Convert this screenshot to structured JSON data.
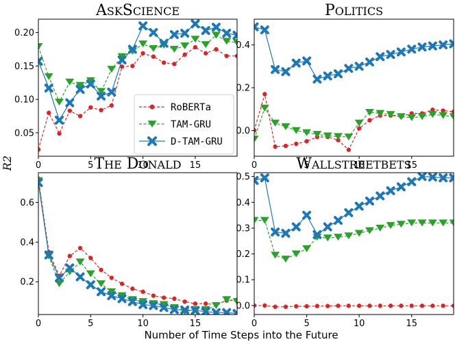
{
  "figure": {
    "xlabel": "Number of Time Steps into the Future",
    "ylabel": "R2"
  },
  "legend": {
    "location": "center of top-left panel",
    "entries": [
      "RoBERTa",
      "TAM-GRU",
      "D-TAM-GRU"
    ]
  },
  "colors": {
    "RoBERTa": "#d62728",
    "TAM-GRU": "#2ca02c",
    "D-TAM-GRU": "#1f77b4"
  },
  "chart_data": [
    {
      "type": "line",
      "title": "AskScience",
      "xlim": [
        0,
        19
      ],
      "ylim": [
        0.015,
        0.22
      ],
      "xticks": [
        0,
        5,
        10,
        15
      ],
      "yticks": [
        0.05,
        0.1,
        0.15,
        0.2
      ],
      "ytick_labels": [
        "0.05",
        "0.10",
        "0.15",
        "0.20"
      ],
      "x": [
        0,
        1,
        2,
        3,
        4,
        5,
        6,
        7,
        8,
        9,
        10,
        11,
        12,
        13,
        14,
        15,
        16,
        17,
        18,
        19
      ],
      "series": [
        {
          "name": "RoBERTa",
          "values": [
            0.025,
            0.08,
            0.049,
            0.083,
            0.075,
            0.088,
            0.084,
            0.091,
            0.149,
            0.15,
            0.169,
            0.164,
            0.155,
            0.153,
            0.167,
            0.178,
            0.169,
            0.175,
            0.165,
            0.165
          ]
        },
        {
          "name": "TAM-GRU",
          "values": [
            0.179,
            0.134,
            0.096,
            0.126,
            0.121,
            0.128,
            0.112,
            0.145,
            0.164,
            0.172,
            0.183,
            0.176,
            0.181,
            0.175,
            0.18,
            0.19,
            0.182,
            0.196,
            0.187,
            0.185
          ]
        },
        {
          "name": "D-TAM-GRU",
          "values": [
            0.157,
            0.117,
            0.069,
            0.095,
            0.115,
            0.123,
            0.105,
            0.111,
            0.159,
            0.175,
            0.21,
            0.2,
            0.184,
            0.197,
            0.199,
            0.213,
            0.203,
            0.208,
            0.199,
            0.196
          ]
        }
      ]
    },
    {
      "type": "line",
      "title": "Politics",
      "xlim": [
        0,
        19
      ],
      "ylim": [
        -0.12,
        0.52
      ],
      "xticks": [
        0,
        5,
        10,
        15
      ],
      "yticks": [
        0.0,
        0.2,
        0.4
      ],
      "ytick_labels": [
        "0.0",
        "0.2",
        "0.4"
      ],
      "x": [
        0,
        1,
        2,
        3,
        4,
        5,
        6,
        7,
        8,
        9,
        10,
        11,
        12,
        13,
        14,
        15,
        16,
        17,
        18,
        19
      ],
      "series": [
        {
          "name": "RoBERTa",
          "values": [
            0.0,
            0.17,
            -0.075,
            -0.072,
            -0.062,
            -0.05,
            -0.03,
            -0.03,
            -0.045,
            -0.09,
            0.01,
            0.048,
            0.07,
            0.07,
            0.065,
            0.08,
            0.08,
            0.097,
            0.093,
            0.088
          ]
        },
        {
          "name": "TAM-GRU",
          "values": [
            -0.04,
            0.105,
            0.035,
            0.018,
            0.0,
            -0.01,
            -0.018,
            -0.025,
            -0.028,
            -0.03,
            0.035,
            0.085,
            0.08,
            0.075,
            0.065,
            0.06,
            0.065,
            0.075,
            0.07,
            0.065
          ]
        },
        {
          "name": "D-TAM-GRU",
          "values": [
            0.484,
            0.47,
            0.285,
            0.275,
            0.315,
            0.325,
            0.24,
            0.255,
            0.265,
            0.29,
            0.3,
            0.32,
            0.345,
            0.355,
            0.367,
            0.38,
            0.39,
            0.395,
            0.4,
            0.405
          ]
        }
      ]
    },
    {
      "type": "line",
      "title": "The Donald",
      "xlim": [
        0,
        19
      ],
      "ylim": [
        0.035,
        0.75
      ],
      "xticks": [
        0,
        5,
        10,
        15
      ],
      "yticks": [
        0.2,
        0.4,
        0.6
      ],
      "ytick_labels": [
        "0.2",
        "0.4",
        "0.6"
      ],
      "x": [
        0,
        1,
        2,
        3,
        4,
        5,
        6,
        7,
        8,
        9,
        10,
        11,
        12,
        13,
        14,
        15,
        16,
        17,
        18,
        19
      ],
      "series": [
        {
          "name": "RoBERTa",
          "values": [
            0.72,
            0.35,
            0.23,
            0.33,
            0.37,
            0.32,
            0.26,
            0.22,
            0.19,
            0.165,
            0.15,
            0.13,
            0.12,
            0.115,
            0.1,
            0.09,
            0.09,
            0.085,
            0.105,
            0.11
          ]
        },
        {
          "name": "TAM-GRU",
          "values": [
            0.71,
            0.33,
            0.19,
            0.25,
            0.3,
            0.24,
            0.19,
            0.15,
            0.13,
            0.11,
            0.1,
            0.09,
            0.085,
            0.07,
            0.05,
            0.06,
            0.06,
            0.08,
            0.11,
            0.1
          ]
        },
        {
          "name": "D-TAM-GRU",
          "values": [
            0.7,
            0.335,
            0.22,
            0.27,
            0.225,
            0.185,
            0.15,
            0.13,
            0.115,
            0.1,
            0.085,
            0.08,
            0.07,
            0.06,
            0.058,
            0.055,
            0.05,
            0.045,
            0.045,
            0.04
          ]
        }
      ]
    },
    {
      "type": "line",
      "title": "Wallstreetbets",
      "xlim": [
        0,
        19
      ],
      "ylim": [
        -0.035,
        0.515
      ],
      "xticks": [
        0,
        5,
        10,
        15
      ],
      "yticks": [
        0.0,
        0.1,
        0.2,
        0.3,
        0.4,
        0.5
      ],
      "ytick_labels": [
        "0.0",
        "0.1",
        "0.2",
        "0.3",
        "0.4",
        "0.5"
      ],
      "x": [
        0,
        1,
        2,
        3,
        4,
        5,
        6,
        7,
        8,
        9,
        10,
        11,
        12,
        13,
        14,
        15,
        16,
        17,
        18,
        19
      ],
      "series": [
        {
          "name": "RoBERTa",
          "values": [
            0.0,
            0.0,
            -0.005,
            -0.005,
            -0.003,
            -0.003,
            -0.002,
            -0.002,
            -0.001,
            -0.001,
            -0.001,
            -0.001,
            -0.001,
            -0.001,
            -0.001,
            -0.001,
            -0.001,
            -0.001,
            -0.001,
            -0.001
          ]
        },
        {
          "name": "TAM-GRU",
          "values": [
            0.33,
            0.33,
            0.195,
            0.18,
            0.2,
            0.22,
            0.265,
            0.262,
            0.265,
            0.27,
            0.28,
            0.29,
            0.3,
            0.31,
            0.315,
            0.32,
            0.32,
            0.32,
            0.32,
            0.32
          ]
        },
        {
          "name": "D-TAM-GRU",
          "values": [
            0.485,
            0.495,
            0.285,
            0.28,
            0.305,
            0.35,
            0.275,
            0.305,
            0.33,
            0.36,
            0.385,
            0.405,
            0.425,
            0.445,
            0.46,
            0.48,
            0.5,
            0.498,
            0.495,
            0.495
          ]
        }
      ]
    }
  ]
}
